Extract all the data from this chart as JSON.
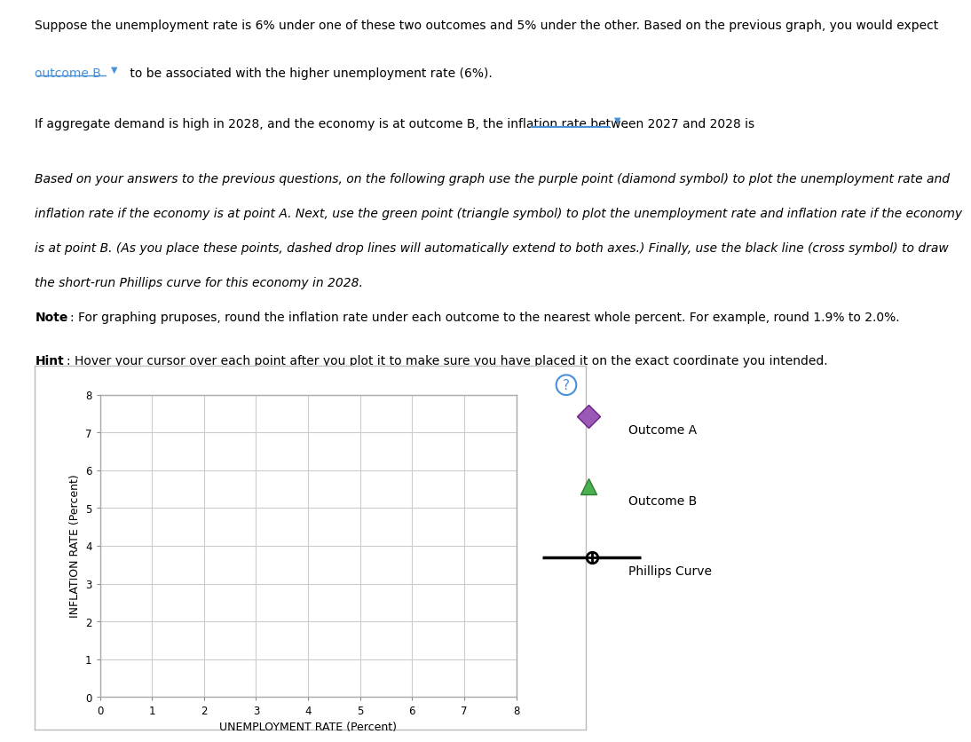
{
  "text_line1": "Suppose the unemployment rate is 6% under one of these two outcomes and 5% under the other. Based on the previous graph, you would expect",
  "text_line2_plain": " to be associated with the higher unemployment rate (6%).",
  "text_link": "outcome B",
  "text_line3": "If aggregate demand is high in 2028, and the economy is at outcome B, the inflation rate between 2027 and 2028 is",
  "text_italic": "Based on your answers to the previous questions, on the following graph use the purple point (diamond symbol) to plot the unemployment rate and\ninflation rate if the economy is at point A. Next, use the green point (triangle symbol) to plot the unemployment rate and inflation rate if the economy\nis at point B. (As you place these points, dashed drop lines will automatically extend to both axes.) Finally, use the black line (cross symbol) to draw\nthe short-run Phillips curve for this economy in 2028.",
  "text_note_bold": "Note",
  "text_note_rest": ": For graphing pruposes, round the inflation rate under each outcome to the nearest whole percent. For example, round 1.9% to 2.0%.",
  "text_hint_bold": "Hint",
  "text_hint_rest": ": Hover your cursor over each point after you plot it to make sure you have placed it on the exact coordinate you intended.",
  "chart_xlabel": "UNEMPLOYMENT RATE (Percent)",
  "chart_ylabel": "INFLATION RATE (Percent)",
  "xlim": [
    0,
    8
  ],
  "ylim": [
    0,
    8
  ],
  "xticks": [
    0,
    1,
    2,
    3,
    4,
    5,
    6,
    7,
    8
  ],
  "yticks": [
    0,
    1,
    2,
    3,
    4,
    5,
    6,
    7,
    8
  ],
  "legend_items": [
    "Outcome A",
    "Outcome B",
    "Phillips Curve"
  ],
  "outcome_a_color": "#9b59b6",
  "outcome_b_color": "#4caf50",
  "phillips_color": "#000000",
  "background_color": "#ffffff",
  "chart_bg": "#ffffff",
  "grid_color": "#cccccc",
  "question_mark_color": "#4a90d9",
  "link_color": "#4a90d9",
  "font_size_body": 10,
  "font_size_axis_label": 9
}
